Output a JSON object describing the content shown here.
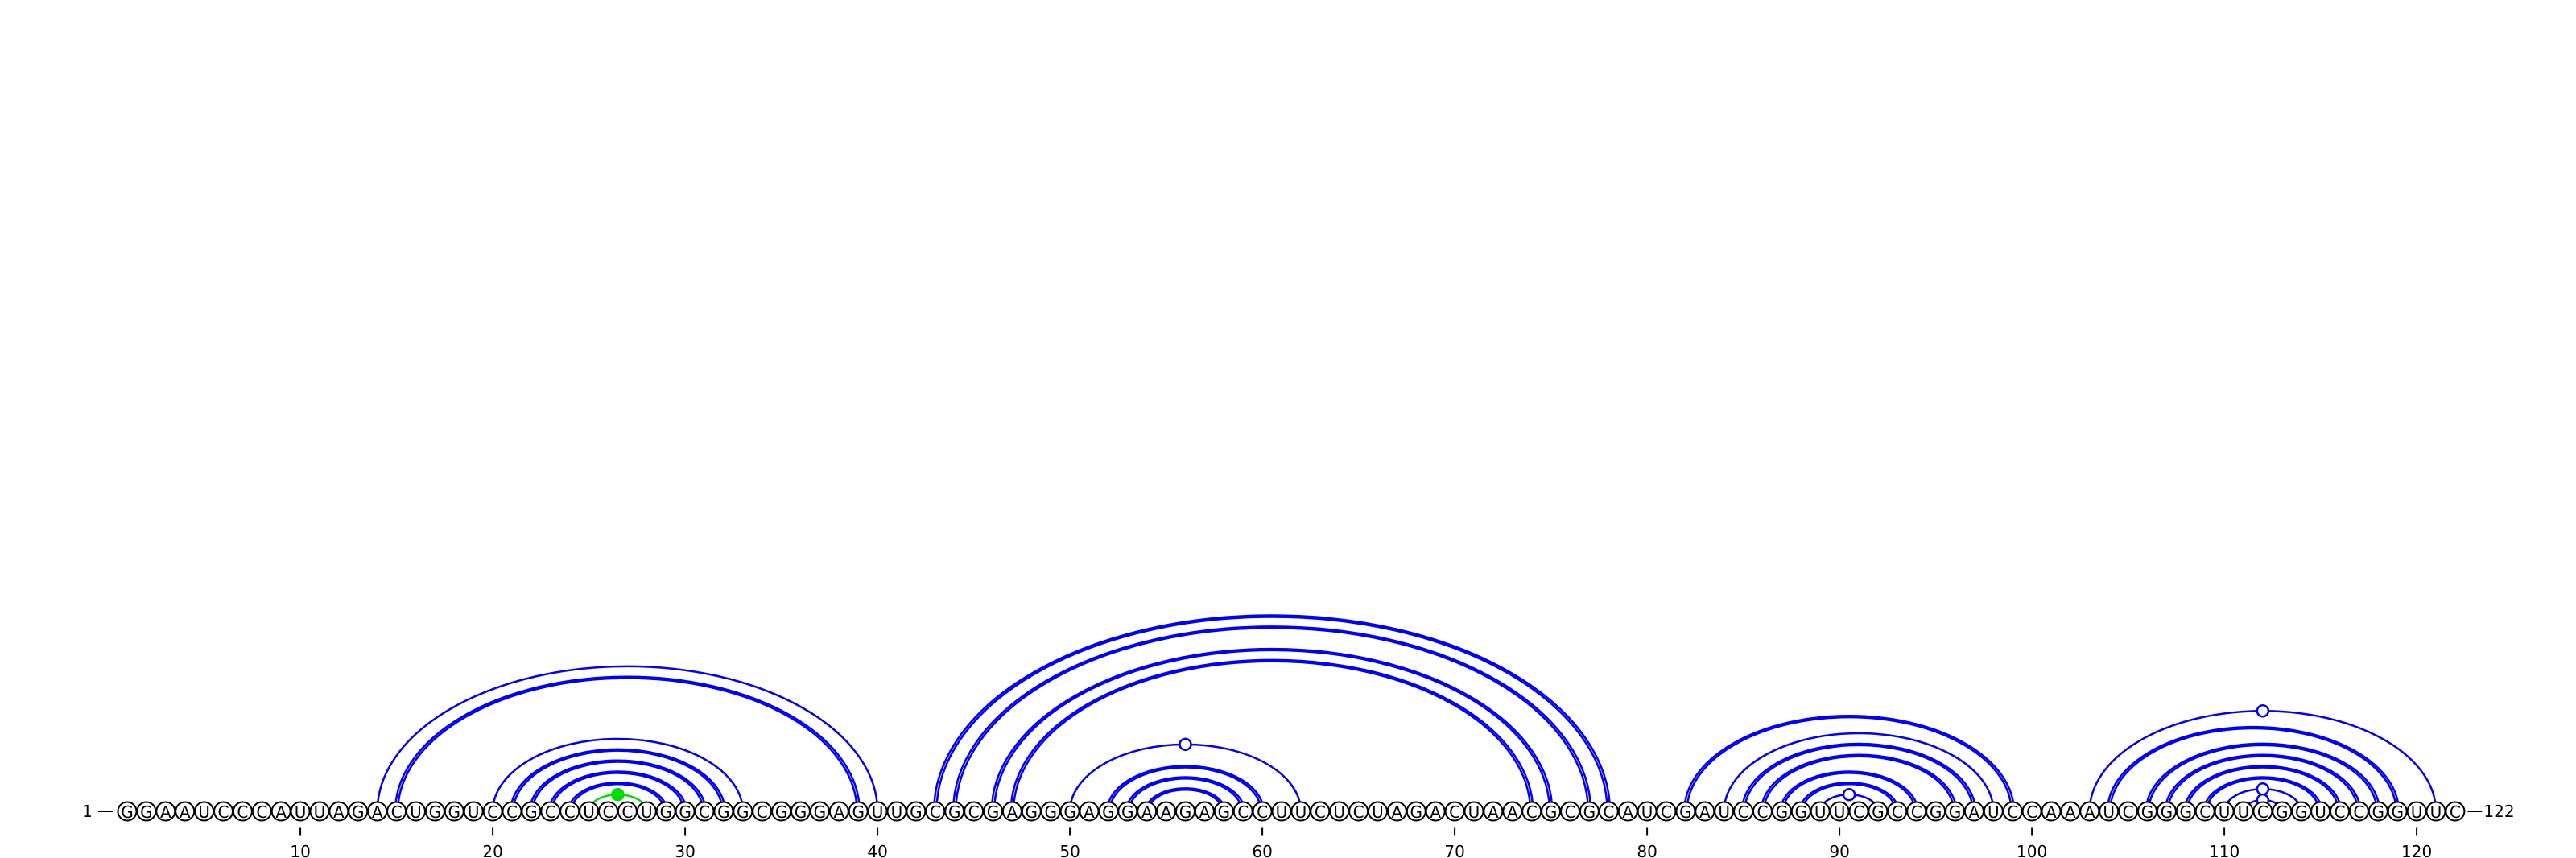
{
  "sequence": "GGAAUCCCAUUAGACUGGUCCGCCUCCUGGCGGCGGGAGUUGCGCGAGGGAGGAAGAGCCUUCUCUAGACUAACGCGCAUCGAUCCGGUUCGCCGGAUCCAAAUCGGGCUUCGGUCCGGUUC",
  "length": 122,
  "start_label": "1",
  "end_label": "122",
  "tick_labels": [
    {
      "position": 10,
      "label": "10"
    },
    {
      "position": 20,
      "label": "20"
    },
    {
      "position": 30,
      "label": "30"
    },
    {
      "position": 40,
      "label": "40"
    },
    {
      "position": 50,
      "label": "50"
    },
    {
      "position": 60,
      "label": "60"
    },
    {
      "position": 70,
      "label": "70"
    },
    {
      "position": 80,
      "label": "80"
    },
    {
      "position": 90,
      "label": "90"
    },
    {
      "position": 100,
      "label": "100"
    },
    {
      "position": 110,
      "label": "110"
    },
    {
      "position": 120,
      "label": "120"
    }
  ],
  "colors": {
    "pair": "#0000ff",
    "highlight": "#00dd00",
    "nucleotide_outline": "#000000"
  },
  "pairs": [
    {
      "i": 14,
      "j": 40,
      "strands": 1,
      "color": "pair"
    },
    {
      "i": 15,
      "j": 39,
      "strands": 2,
      "color": "pair"
    },
    {
      "i": 20,
      "j": 33,
      "strands": 1,
      "color": "pair"
    },
    {
      "i": 21,
      "j": 32,
      "strands": 2,
      "color": "pair"
    },
    {
      "i": 22,
      "j": 31,
      "strands": 2,
      "color": "pair"
    },
    {
      "i": 23,
      "j": 30,
      "strands": 2,
      "color": "pair"
    },
    {
      "i": 24,
      "j": 29,
      "strands": 2,
      "color": "pair"
    },
    {
      "i": 25,
      "j": 28,
      "strands": 1,
      "color": "highlight",
      "marker": "filled"
    },
    {
      "i": 43,
      "j": 78,
      "strands": 2,
      "color": "pair"
    },
    {
      "i": 44,
      "j": 77,
      "strands": 2,
      "color": "pair"
    },
    {
      "i": 46,
      "j": 75,
      "strands": 2,
      "color": "pair"
    },
    {
      "i": 47,
      "j": 74,
      "strands": 2,
      "color": "pair"
    },
    {
      "i": 50,
      "j": 62,
      "strands": 1,
      "color": "pair",
      "marker": "open"
    },
    {
      "i": 52,
      "j": 60,
      "strands": 2,
      "color": "pair"
    },
    {
      "i": 53,
      "j": 59,
      "strands": 2,
      "color": "pair"
    },
    {
      "i": 54,
      "j": 58,
      "strands": 2,
      "color": "pair"
    },
    {
      "i": 82,
      "j": 99,
      "strands": 2,
      "color": "pair"
    },
    {
      "i": 84,
      "j": 98,
      "strands": 1,
      "color": "pair"
    },
    {
      "i": 85,
      "j": 97,
      "strands": 2,
      "color": "pair"
    },
    {
      "i": 86,
      "j": 96,
      "strands": 2,
      "color": "pair"
    },
    {
      "i": 87,
      "j": 94,
      "strands": 2,
      "color": "pair"
    },
    {
      "i": 88,
      "j": 93,
      "strands": 2,
      "color": "pair"
    },
    {
      "i": 89,
      "j": 92,
      "strands": 1,
      "color": "pair",
      "marker": "open"
    },
    {
      "i": 103,
      "j": 121,
      "strands": 1,
      "color": "pair",
      "marker": "open"
    },
    {
      "i": 104,
      "j": 119,
      "strands": 2,
      "color": "pair"
    },
    {
      "i": 106,
      "j": 118,
      "strands": 2,
      "color": "pair"
    },
    {
      "i": 107,
      "j": 117,
      "strands": 2,
      "color": "pair"
    },
    {
      "i": 108,
      "j": 116,
      "strands": 2,
      "color": "pair"
    },
    {
      "i": 109,
      "j": 115,
      "strands": 2,
      "color": "pair"
    },
    {
      "i": 110,
      "j": 114,
      "strands": 1,
      "color": "pair",
      "marker": "open"
    },
    {
      "i": 111,
      "j": 113,
      "strands": 1,
      "color": "pair",
      "marker": "open"
    }
  ]
}
